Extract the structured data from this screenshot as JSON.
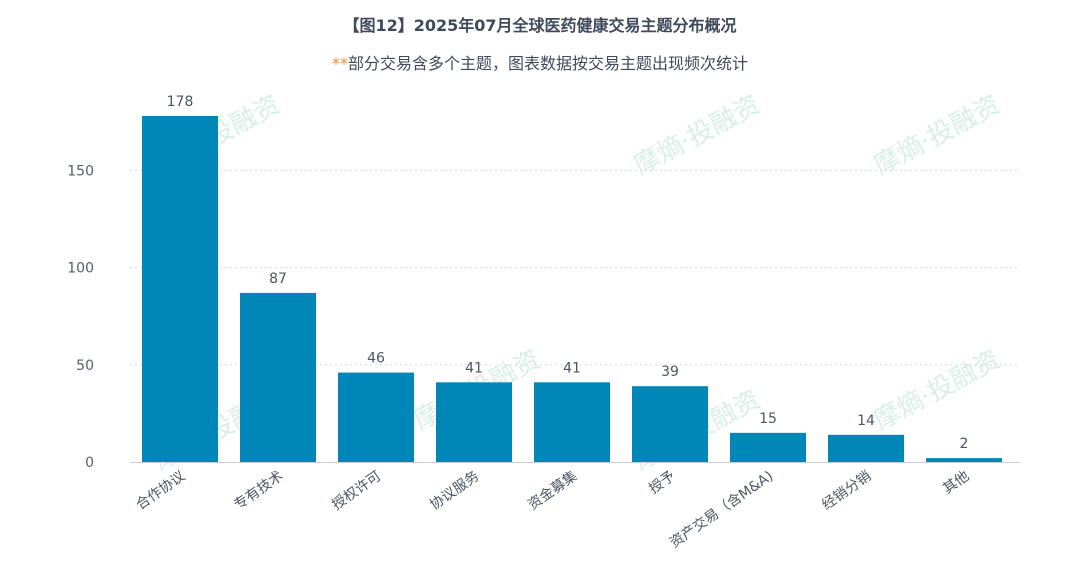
{
  "chart_data": {
    "type": "bar",
    "title": "【图12】2025年07月全球医药健康交易主题分布概况",
    "subtitle_marker": "**",
    "subtitle": "部分交易含多个主题，图表数据按交易主题出现频次统计",
    "categories": [
      "合作协议",
      "专有技术",
      "授权许可",
      "协议服务",
      "资金募集",
      "授予",
      "资产交易（含M&A)",
      "经销分销",
      "其他"
    ],
    "values": [
      178,
      87,
      46,
      41,
      41,
      39,
      15,
      14,
      2
    ],
    "ylim": [
      0,
      180
    ],
    "yticks": [
      0,
      50,
      100,
      150
    ],
    "xlabel": "",
    "ylabel": "",
    "grid": "horizontal dotted",
    "bar_color": "#0087b8",
    "watermark": "摩熵·投融资"
  }
}
